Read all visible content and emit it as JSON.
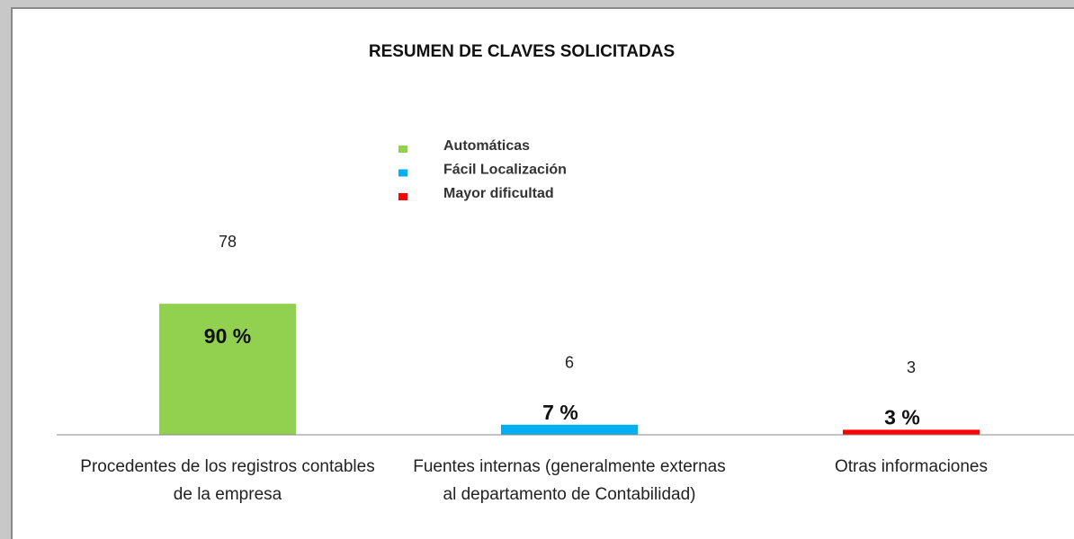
{
  "chart_data": {
    "type": "bar",
    "title": "RESUMEN DE CLAVES SOLICITADAS",
    "categories": [
      "Procedentes de los registros contables de la empresa",
      "Fuentes internas (generalmente externas al departamento de Contabilidad)",
      "Otras informaciones"
    ],
    "series": [
      {
        "name": "Automáticas",
        "color": "#92d050",
        "values": [
          78,
          null,
          null
        ]
      },
      {
        "name": "Fácil Localización",
        "color": "#00b0f0",
        "values": [
          null,
          6,
          null
        ]
      },
      {
        "name": "Mayor dificultad",
        "color": "#ff0000",
        "values": [
          null,
          null,
          3
        ]
      }
    ],
    "annotations": [
      "90 %",
      "7 %",
      "3 %"
    ],
    "ylim": [
      0,
      100
    ]
  }
}
